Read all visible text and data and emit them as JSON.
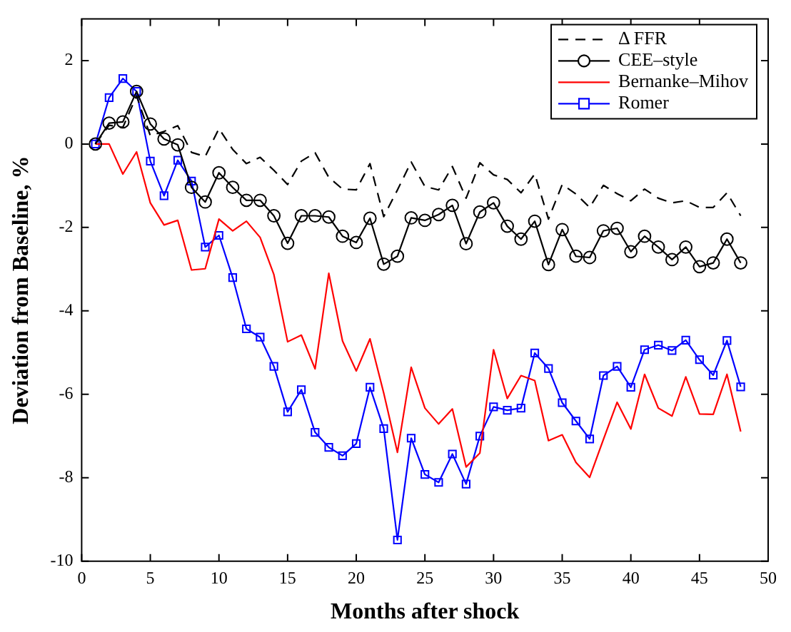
{
  "chart_data": {
    "type": "line",
    "xlabel": "Months after shock",
    "ylabel": "Deviation from Baseline, %",
    "x": [
      1,
      2,
      3,
      4,
      5,
      6,
      7,
      8,
      9,
      10,
      11,
      12,
      13,
      14,
      15,
      16,
      17,
      18,
      19,
      20,
      21,
      22,
      23,
      24,
      25,
      26,
      27,
      28,
      29,
      30,
      31,
      32,
      33,
      34,
      35,
      36,
      37,
      38,
      39,
      40,
      41,
      42,
      43,
      44,
      45,
      46,
      47,
      48
    ],
    "xlim": [
      0,
      50
    ],
    "xticks": [
      0,
      5,
      10,
      15,
      20,
      25,
      30,
      35,
      40,
      45,
      50
    ],
    "ylim": [
      -10,
      3
    ],
    "yticks": [
      -10,
      -8,
      -6,
      -4,
      -2,
      0,
      2
    ],
    "grid": false,
    "legend": "top right",
    "series": [
      {
        "name": "Δ FFR",
        "color": "#000000",
        "line_style": "dashed",
        "marker": "none",
        "values": [
          0,
          0.45,
          0.4,
          1.15,
          0.2,
          0.3,
          0.44,
          -0.2,
          -0.3,
          0.37,
          -0.13,
          -0.47,
          -0.32,
          -0.63,
          -0.97,
          -0.41,
          -0.21,
          -0.8,
          -1.08,
          -1.1,
          -0.47,
          -1.74,
          -1.1,
          -0.43,
          -1.02,
          -1.1,
          -0.54,
          -1.3,
          -0.45,
          -0.74,
          -0.85,
          -1.17,
          -0.72,
          -1.8,
          -0.97,
          -1.2,
          -1.52,
          -0.99,
          -1.19,
          -1.36,
          -1.08,
          -1.3,
          -1.41,
          -1.36,
          -1.52,
          -1.52,
          -1.17,
          -1.72
        ]
      },
      {
        "name": "CEE–style",
        "color": "#000000",
        "line_style": "solid",
        "marker": "circle",
        "values": [
          0,
          0.5,
          0.53,
          1.26,
          0.48,
          0.12,
          -0.02,
          -1.04,
          -1.39,
          -0.69,
          -1.04,
          -1.35,
          -1.35,
          -1.72,
          -2.38,
          -1.72,
          -1.72,
          -1.75,
          -2.21,
          -2.36,
          -1.78,
          -2.88,
          -2.69,
          -1.77,
          -1.83,
          -1.69,
          -1.47,
          -2.39,
          -1.63,
          -1.41,
          -1.97,
          -2.28,
          -1.85,
          -2.89,
          -2.05,
          -2.69,
          -2.72,
          -2.08,
          -2.02,
          -2.58,
          -2.21,
          -2.47,
          -2.77,
          -2.47,
          -2.94,
          -2.85,
          -2.28,
          -2.85
        ]
      },
      {
        "name": "Bernanke–Mihov",
        "color": "#ff0000",
        "line_style": "solid",
        "marker": "none",
        "values": [
          0,
          0,
          -0.72,
          -0.19,
          -1.41,
          -1.94,
          -1.83,
          -3.02,
          -2.99,
          -1.8,
          -2.08,
          -1.85,
          -2.24,
          -3.13,
          -4.74,
          -4.58,
          -5.39,
          -3.1,
          -4.72,
          -5.44,
          -4.67,
          -5.97,
          -7.39,
          -5.35,
          -6.33,
          -6.71,
          -6.35,
          -7.74,
          -7.41,
          -4.93,
          -6.1,
          -5.55,
          -5.67,
          -7.11,
          -6.97,
          -7.63,
          -7.99,
          -7.08,
          -6.19,
          -6.83,
          -5.52,
          -6.33,
          -6.52,
          -5.58,
          -6.47,
          -6.48,
          -5.52,
          -6.89
        ]
      },
      {
        "name": "Romer",
        "color": "#0000ff",
        "line_style": "solid",
        "marker": "square",
        "values": [
          0,
          1.11,
          1.57,
          1.26,
          -0.41,
          -1.24,
          -0.39,
          -0.89,
          -2.47,
          -2.19,
          -3.2,
          -4.43,
          -4.63,
          -5.33,
          -6.42,
          -5.89,
          -6.91,
          -7.27,
          -7.47,
          -7.18,
          -5.83,
          -6.82,
          -9.49,
          -7.05,
          -7.92,
          -8.11,
          -7.43,
          -8.15,
          -7.0,
          -6.3,
          -6.38,
          -6.33,
          -5.01,
          -5.38,
          -6.2,
          -6.64,
          -7.07,
          -5.55,
          -5.33,
          -5.83,
          -4.93,
          -4.82,
          -4.95,
          -4.7,
          -5.17,
          -5.54,
          -4.71,
          -5.82
        ]
      }
    ]
  }
}
